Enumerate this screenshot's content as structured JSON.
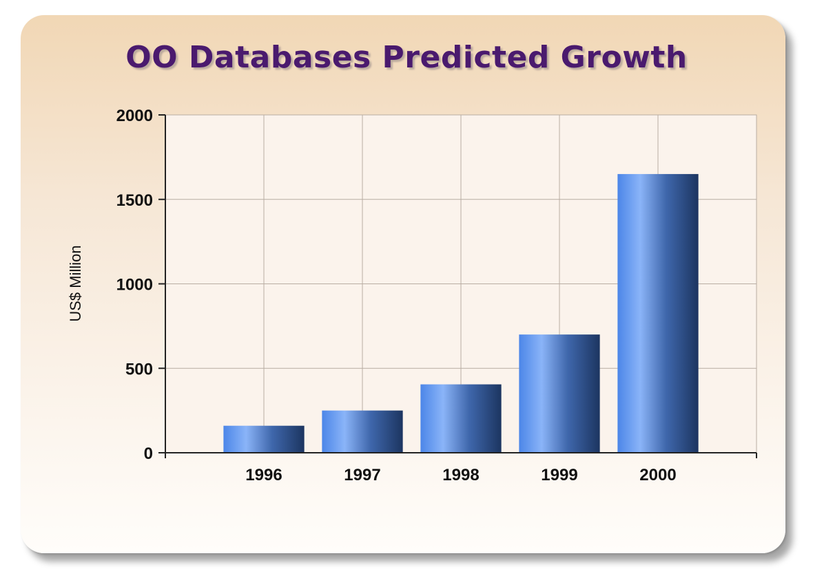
{
  "chart_data": {
    "type": "bar",
    "title": "OO Databases Predicted Growth",
    "xlabel": "",
    "ylabel": "US$ Million",
    "categories": [
      "1996",
      "1997",
      "1998",
      "1999",
      "2000"
    ],
    "values": [
      160,
      250,
      405,
      700,
      1650
    ],
    "ylim": [
      0,
      2000
    ],
    "yticks": [
      0,
      500,
      1000,
      1500,
      2000
    ],
    "grid": true,
    "colors": {
      "bar_light": "#8ab4f8",
      "bar_mid": "#4c86e8",
      "bar_dark": "#1c3560",
      "title": "#4a1a6e",
      "plot_bg": "#fbf3ec",
      "grid": "#b8aca2"
    }
  }
}
